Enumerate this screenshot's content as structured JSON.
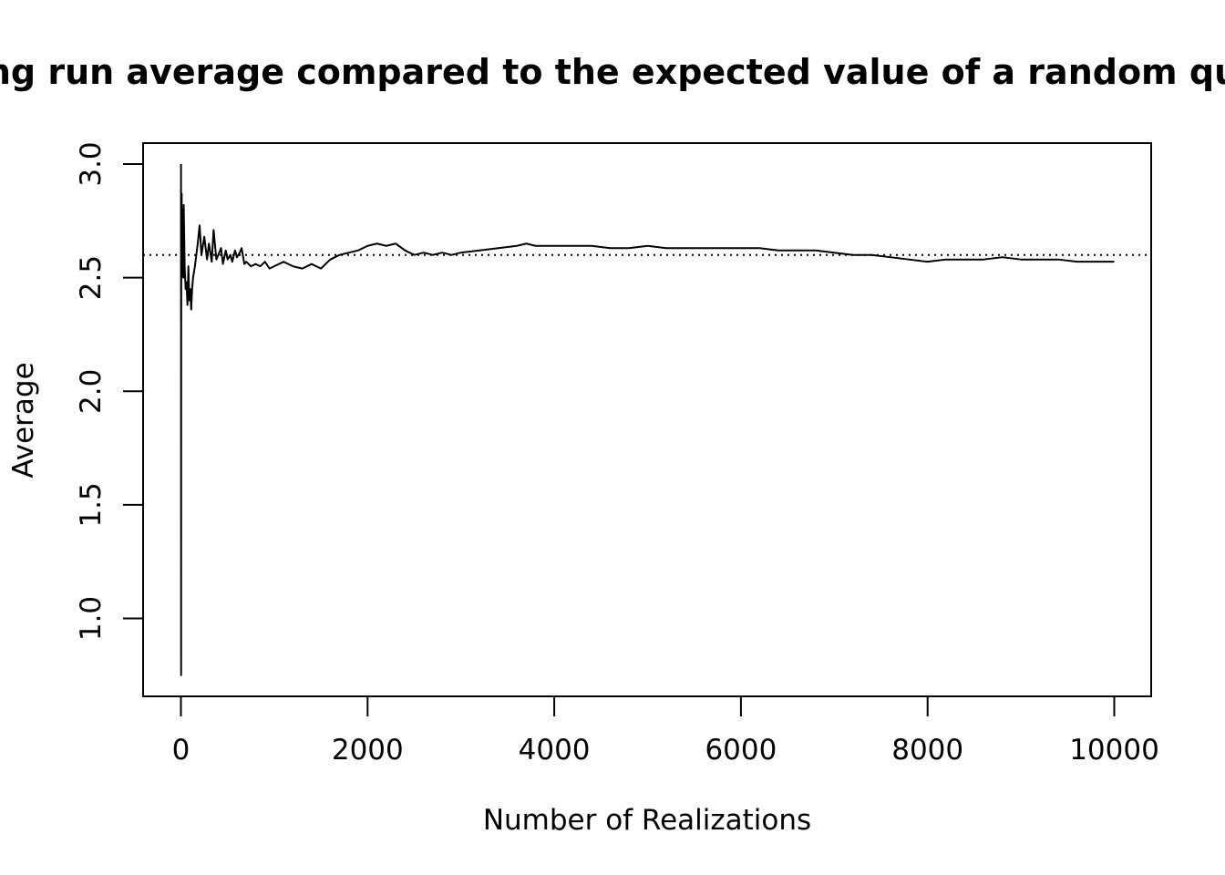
{
  "chart_data": {
    "type": "line",
    "title": "ng run average compared to the expected value of a random qu",
    "xlabel": "Number of Realizations",
    "ylabel": "Average",
    "xlim": [
      0,
      10000
    ],
    "ylim": [
      0.75,
      3.0
    ],
    "x_ticks": [
      0,
      2000,
      4000,
      6000,
      8000,
      10000
    ],
    "y_ticks": [
      "1.0",
      "1.5",
      "2.0",
      "2.5",
      "3.0"
    ],
    "reference_line": {
      "y": 2.6,
      "style": "dotted"
    },
    "grid": false,
    "legend": "none",
    "series": [
      {
        "color": "#000000",
        "x": [
          1,
          2,
          3,
          4,
          5,
          8,
          10,
          15,
          20,
          25,
          30,
          40,
          50,
          60,
          70,
          80,
          90,
          100,
          110,
          120,
          130,
          150,
          180,
          200,
          220,
          250,
          280,
          300,
          330,
          350,
          380,
          400,
          430,
          450,
          480,
          500,
          530,
          550,
          580,
          600,
          630,
          650,
          680,
          700,
          750,
          800,
          850,
          900,
          950,
          1000,
          1100,
          1200,
          1300,
          1400,
          1500,
          1600,
          1700,
          1800,
          1900,
          2000,
          2100,
          2200,
          2300,
          2400,
          2500,
          2600,
          2700,
          2800,
          2900,
          3000,
          3200,
          3400,
          3600,
          3700,
          3800,
          4000,
          4200,
          4400,
          4600,
          4800,
          5000,
          5200,
          5400,
          5600,
          5800,
          6000,
          6200,
          6400,
          6600,
          6800,
          7000,
          7200,
          7400,
          7600,
          7800,
          8000,
          8200,
          8400,
          8600,
          8800,
          9000,
          9200,
          9400,
          9600,
          9800,
          10000
        ],
        "y": [
          3.0,
          0.75,
          2.2,
          2.75,
          2.5,
          2.87,
          2.6,
          2.8,
          2.7,
          2.5,
          2.82,
          2.55,
          2.45,
          2.48,
          2.38,
          2.55,
          2.4,
          2.45,
          2.36,
          2.45,
          2.5,
          2.55,
          2.65,
          2.73,
          2.6,
          2.68,
          2.58,
          2.65,
          2.57,
          2.71,
          2.58,
          2.6,
          2.63,
          2.56,
          2.62,
          2.58,
          2.6,
          2.57,
          2.62,
          2.59,
          2.61,
          2.63,
          2.56,
          2.57,
          2.55,
          2.56,
          2.55,
          2.57,
          2.54,
          2.55,
          2.57,
          2.55,
          2.54,
          2.56,
          2.54,
          2.58,
          2.6,
          2.61,
          2.62,
          2.64,
          2.65,
          2.64,
          2.65,
          2.62,
          2.6,
          2.61,
          2.6,
          2.61,
          2.6,
          2.61,
          2.62,
          2.63,
          2.64,
          2.65,
          2.64,
          2.64,
          2.64,
          2.64,
          2.63,
          2.63,
          2.64,
          2.63,
          2.63,
          2.63,
          2.63,
          2.63,
          2.63,
          2.62,
          2.62,
          2.62,
          2.61,
          2.6,
          2.6,
          2.59,
          2.58,
          2.57,
          2.58,
          2.58,
          2.58,
          2.59,
          2.58,
          2.58,
          2.58,
          2.57,
          2.57,
          2.57
        ]
      }
    ]
  }
}
